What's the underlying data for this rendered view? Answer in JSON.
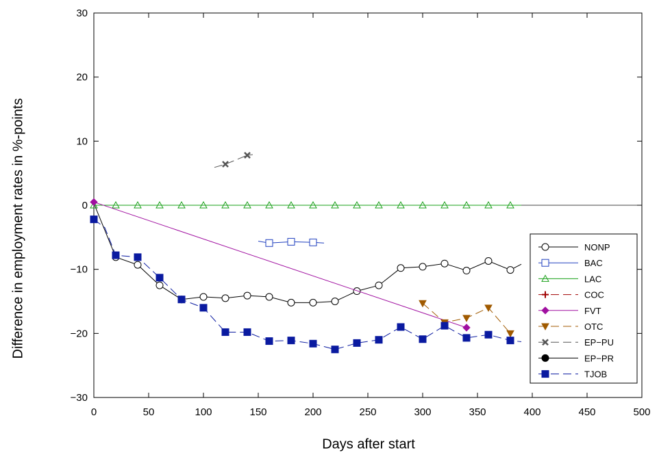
{
  "chart_data": {
    "type": "line",
    "title": "",
    "xlabel": "Days after start",
    "ylabel": "Difference in employment rates in %-points",
    "xlim": [
      0,
      500
    ],
    "ylim": [
      -30,
      30
    ],
    "xticks": [
      0,
      50,
      100,
      150,
      200,
      250,
      300,
      350,
      400,
      450,
      500
    ],
    "yticks": [
      -30,
      -20,
      -10,
      0,
      10,
      20,
      30
    ],
    "xtick_labels": [
      "0",
      "50",
      "100",
      "150",
      "200",
      "250",
      "300",
      "350",
      "400",
      "450",
      "500"
    ],
    "ytick_labels": [
      "−30",
      "−20",
      "−10",
      "0",
      "10",
      "20",
      "30"
    ],
    "grid": false,
    "zero_line": true,
    "legend_position": "right",
    "series": [
      {
        "name": "NONP",
        "color": "#000000",
        "marker": "circle-open",
        "dash": "solid",
        "points": [
          [
            0,
            0.3
          ],
          [
            20,
            -8.1
          ],
          [
            40,
            -9.3
          ],
          [
            60,
            -12.5
          ],
          [
            80,
            -14.7
          ],
          [
            100,
            -14.3
          ],
          [
            120,
            -14.5
          ],
          [
            140,
            -14.1
          ],
          [
            160,
            -14.3
          ],
          [
            180,
            -15.2
          ],
          [
            200,
            -15.2
          ],
          [
            220,
            -15.0
          ],
          [
            240,
            -13.4
          ],
          [
            260,
            -12.5
          ],
          [
            280,
            -9.8
          ],
          [
            300,
            -9.6
          ],
          [
            320,
            -9.1
          ],
          [
            340,
            -10.2
          ],
          [
            360,
            -8.7
          ],
          [
            380,
            -10.1
          ],
          [
            390,
            -9.2
          ]
        ],
        "marker_points": [
          [
            20,
            -8.1
          ],
          [
            40,
            -9.3
          ],
          [
            60,
            -12.5
          ],
          [
            80,
            -14.7
          ],
          [
            100,
            -14.3
          ],
          [
            120,
            -14.5
          ],
          [
            140,
            -14.1
          ],
          [
            160,
            -14.3
          ],
          [
            180,
            -15.2
          ],
          [
            200,
            -15.2
          ],
          [
            220,
            -15.0
          ],
          [
            240,
            -13.4
          ],
          [
            260,
            -12.5
          ],
          [
            280,
            -9.8
          ],
          [
            300,
            -9.6
          ],
          [
            320,
            -9.1
          ],
          [
            340,
            -10.2
          ],
          [
            360,
            -8.7
          ],
          [
            380,
            -10.1
          ]
        ]
      },
      {
        "name": "BAC",
        "color": "#1f3fbf",
        "marker": "square-open",
        "dash": "solid",
        "points": [
          [
            150,
            -5.6
          ],
          [
            160,
            -5.9
          ],
          [
            180,
            -5.7
          ],
          [
            200,
            -5.8
          ],
          [
            210,
            -5.9
          ]
        ],
        "marker_points": [
          [
            160,
            -5.9
          ],
          [
            180,
            -5.7
          ],
          [
            200,
            -5.8
          ]
        ]
      },
      {
        "name": "LAC",
        "color": "#1aa01a",
        "marker": "triangle-open",
        "dash": "solid",
        "points": [
          [
            0,
            0.0
          ],
          [
            390,
            0.0
          ]
        ],
        "marker_points": [
          [
            0,
            0
          ],
          [
            20,
            0
          ],
          [
            40,
            0
          ],
          [
            60,
            0
          ],
          [
            80,
            0
          ],
          [
            100,
            0
          ],
          [
            120,
            0
          ],
          [
            140,
            0
          ],
          [
            160,
            0
          ],
          [
            180,
            0
          ],
          [
            200,
            0
          ],
          [
            220,
            0
          ],
          [
            240,
            0
          ],
          [
            260,
            0
          ],
          [
            280,
            0
          ],
          [
            300,
            0
          ],
          [
            320,
            0
          ],
          [
            340,
            0
          ],
          [
            360,
            0
          ],
          [
            380,
            0
          ]
        ]
      },
      {
        "name": "COC",
        "color": "#a00000",
        "marker": "plus",
        "dash": "dashed",
        "points": [],
        "marker_points": []
      },
      {
        "name": "FVT",
        "color": "#a010a0",
        "marker": "diamond-filled",
        "dash": "solid",
        "points": [
          [
            0,
            0.5
          ],
          [
            340,
            -19.1
          ]
        ],
        "marker_points": [
          [
            0,
            0.5
          ],
          [
            340,
            -19.1
          ]
        ]
      },
      {
        "name": "OTC",
        "color": "#a05a00",
        "marker": "triangle-down-filled",
        "dash": "dashed",
        "points": [
          [
            300,
            -15.3
          ],
          [
            320,
            -18.3
          ],
          [
            340,
            -17.6
          ],
          [
            360,
            -16.0
          ],
          [
            380,
            -20.0
          ]
        ],
        "marker_points": [
          [
            300,
            -15.3
          ],
          [
            320,
            -18.3
          ],
          [
            340,
            -17.6
          ],
          [
            360,
            -16.0
          ],
          [
            380,
            -20.0
          ]
        ]
      },
      {
        "name": "EP−PU",
        "color": "#555555",
        "marker": "x",
        "dash": "dashed",
        "points": [
          [
            110,
            5.9
          ],
          [
            120,
            6.4
          ],
          [
            140,
            7.8
          ],
          [
            145,
            7.9
          ]
        ],
        "marker_points": [
          [
            120,
            6.4
          ],
          [
            140,
            7.8
          ]
        ]
      },
      {
        "name": "EP−PR",
        "color": "#000000",
        "marker": "circle-filled",
        "dash": "solid",
        "points": [],
        "marker_points": []
      },
      {
        "name": "TJOB",
        "color": "#0a1aa0",
        "marker": "square-filled",
        "dash": "dashed",
        "points": [
          [
            0,
            -2.2
          ],
          [
            10,
            -3.5
          ],
          [
            20,
            -7.8
          ],
          [
            40,
            -8.1
          ],
          [
            60,
            -11.3
          ],
          [
            80,
            -14.7
          ],
          [
            100,
            -16.0
          ],
          [
            120,
            -19.8
          ],
          [
            140,
            -19.8
          ],
          [
            160,
            -21.2
          ],
          [
            180,
            -21.1
          ],
          [
            200,
            -21.6
          ],
          [
            220,
            -22.5
          ],
          [
            240,
            -21.5
          ],
          [
            260,
            -21.0
          ],
          [
            280,
            -19.0
          ],
          [
            300,
            -20.9
          ],
          [
            320,
            -18.8
          ],
          [
            340,
            -20.7
          ],
          [
            360,
            -20.2
          ],
          [
            380,
            -21.1
          ],
          [
            390,
            -21.3
          ]
        ],
        "marker_points": [
          [
            0,
            -2.2
          ],
          [
            20,
            -7.8
          ],
          [
            40,
            -8.1
          ],
          [
            60,
            -11.3
          ],
          [
            80,
            -14.7
          ],
          [
            100,
            -16.0
          ],
          [
            120,
            -19.8
          ],
          [
            140,
            -19.8
          ],
          [
            160,
            -21.2
          ],
          [
            180,
            -21.1
          ],
          [
            200,
            -21.6
          ],
          [
            220,
            -22.5
          ],
          [
            240,
            -21.5
          ],
          [
            260,
            -21.0
          ],
          [
            280,
            -19.0
          ],
          [
            300,
            -20.9
          ],
          [
            320,
            -18.8
          ],
          [
            340,
            -20.7
          ],
          [
            360,
            -20.2
          ],
          [
            380,
            -21.1
          ]
        ]
      }
    ]
  }
}
